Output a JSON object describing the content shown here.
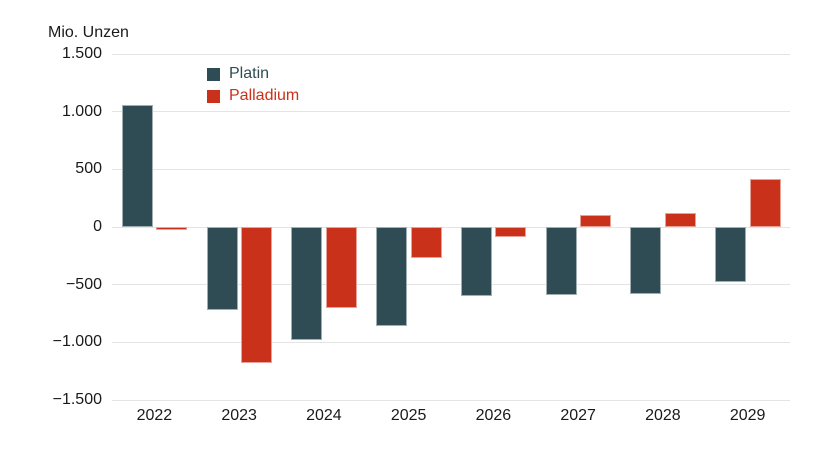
{
  "chart_data": {
    "type": "bar",
    "title": "",
    "unit_label": "Mio. Unzen",
    "categories": [
      "2022",
      "2023",
      "2024",
      "2025",
      "2026",
      "2027",
      "2028",
      "2029"
    ],
    "series": [
      {
        "name": "Platin",
        "color": "#2f4c54",
        "values": [
          1060,
          -720,
          -980,
          -855,
          -600,
          -590,
          -585,
          -480
        ]
      },
      {
        "name": "Palladium",
        "color": "#c9311a",
        "values": [
          -25,
          -1180,
          -700,
          -265,
          -90,
          105,
          120,
          420
        ]
      }
    ],
    "xlabel": "",
    "ylabel": "Mio. Unzen",
    "ylim": [
      -1500,
      1500
    ],
    "yticks": [
      1500,
      1000,
      500,
      0,
      -500,
      -1000,
      -1500
    ],
    "ytick_labels": [
      "1.500",
      "1.000",
      "500",
      "0",
      "−500",
      "−1.000",
      "−1.500"
    ],
    "grid": true,
    "legend_position": "inside-top-left",
    "colors": {
      "grid": "#e4e4e4",
      "text": "#1a1a1a",
      "background": "#ffffff"
    }
  }
}
